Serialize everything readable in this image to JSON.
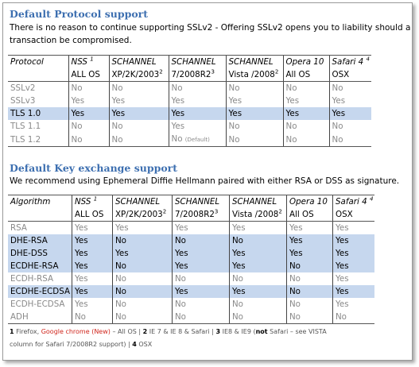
{
  "protocol_heading": "Default Protocol support",
  "protocol_desc_line1": "There is no reason to continue supporting SSLv2 - Offering SSLv2 opens you to liability should a",
  "protocol_desc_line2": "transaction be compromised.",
  "protocol_table": {
    "header": [
      "Protocol",
      "NSS",
      "SCHANNEL",
      "SCHANNEL",
      "SCHANNEL",
      "Opera 10",
      "Safari 4"
    ],
    "header_sup": [
      "",
      "1",
      "",
      "",
      "",
      "",
      "4"
    ],
    "subheader": [
      "",
      "ALL OS",
      "XP/2K/2003",
      "7/2008R2",
      "Vista /2008",
      "All OS",
      "OSX"
    ],
    "subheader_sup": [
      "",
      "",
      "2",
      "3",
      "2",
      "",
      ""
    ],
    "rows": [
      {
        "cells": [
          "SSLv2",
          "No",
          "No",
          "No",
          "No",
          "No",
          "No"
        ],
        "style": "g"
      },
      {
        "cells": [
          "SSLv3",
          "Yes",
          "Yes",
          "Yes",
          "Yes",
          "Yes",
          "Yes"
        ],
        "style": "g"
      },
      {
        "cells": [
          "TLS 1.0",
          "Yes",
          "Yes",
          "Yes",
          "Yes",
          "Yes",
          "Yes"
        ],
        "style": "hl"
      },
      {
        "cells": [
          "TLS 1.1",
          "No",
          "No",
          "Yes",
          "No",
          "No",
          "No"
        ],
        "style": "g"
      },
      {
        "cells": [
          "TLS 1.2",
          "No",
          "No",
          "No",
          "No",
          "No",
          "No"
        ],
        "style": "g"
      }
    ],
    "default_note": "(Default)"
  },
  "kex_heading": "Default Key exchange support",
  "kex_desc": "We recommend using Ephemeral Diffie Hellmann paired with either RSA or DSS as signature.",
  "kex_table": {
    "header": [
      "Algorithm",
      "NSS",
      "SCHANNEL",
      "SCHANNEL",
      "SCHANNEL",
      "Opera 10",
      "Safari 4"
    ],
    "header_sup": [
      "",
      "1",
      "",
      "",
      "",
      "",
      "4"
    ],
    "subheader": [
      "",
      "ALL OS",
      "XP/2K/2003",
      "7/2008R2",
      "Vista /2008",
      "All OS",
      "OSX"
    ],
    "subheader_sup": [
      "",
      "",
      "2",
      "3",
      "2",
      "",
      ""
    ],
    "rows": [
      {
        "cells": [
          "RSA",
          "Yes",
          "Yes",
          "Yes",
          "Yes",
          "Yes",
          "Yes"
        ],
        "style": "g"
      },
      {
        "cells": [
          "DHE-RSA",
          "Yes",
          "No",
          "No",
          "No",
          "Yes",
          "Yes"
        ],
        "style": "hl"
      },
      {
        "cells": [
          "DHE-DSS",
          "Yes",
          "Yes",
          "Yes",
          "Yes",
          "Yes",
          "Yes"
        ],
        "style": "hl"
      },
      {
        "cells": [
          "ECDHE-RSA",
          "Yes",
          "No",
          "Yes",
          "Yes",
          "No",
          "Yes"
        ],
        "style": "hl"
      },
      {
        "cells": [
          "ECDH-RSA",
          "Yes",
          "No",
          "No",
          "No",
          "No",
          "Yes"
        ],
        "style": "g"
      },
      {
        "cells": [
          "ECDHE-ECDSA",
          "Yes",
          "No",
          "Yes",
          "Yes",
          "No",
          "Yes"
        ],
        "style": "hl"
      },
      {
        "cells": [
          "ECDH-ECDSA",
          "Yes",
          "No",
          "No",
          "No",
          "No",
          "Yes"
        ],
        "style": "g"
      },
      {
        "cells": [
          "ADH",
          "No",
          "No",
          "No",
          "No",
          "No",
          "No"
        ],
        "style": "g"
      }
    ]
  },
  "footnote": {
    "n1": "1",
    "n1_text_a": "Firefox,",
    "n1_chrome": "Google chrome (New)",
    "n1_text_b": "– All OS |",
    "n2": "2",
    "n2_text": "IE 7 & IE 8 & Safari |",
    "n3": "3",
    "n3_text_a": "IE8 & IE9 (",
    "n3_not": "not",
    "n3_text_b": "Safari – see VISTA",
    "line2": "column for Safari 7/2008R2 support) |",
    "n4": "4",
    "n4_text": "OSX"
  }
}
